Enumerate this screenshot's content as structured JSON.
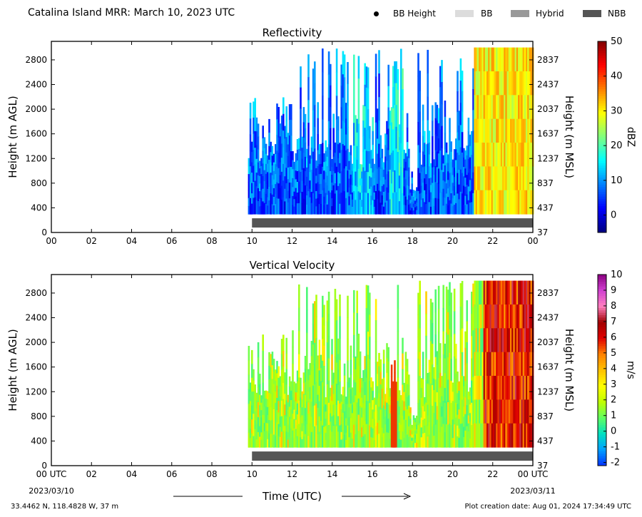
{
  "header": {
    "title": "Catalina Island MRR:  March 10, 2023 UTC",
    "legend": [
      {
        "key": "bb_height",
        "label": "BB Height",
        "symbol": "dot",
        "color": "#000000"
      },
      {
        "key": "bb",
        "label": "BB",
        "symbol": "rect",
        "color": "#dcdcdc"
      },
      {
        "key": "hybrid",
        "label": "Hybrid",
        "symbol": "rect",
        "color": "#999999"
      },
      {
        "key": "nbb",
        "label": "NBB",
        "symbol": "rect",
        "color": "#555555"
      }
    ]
  },
  "footer": {
    "location": "33.4462 N, 118.4828 W, 37 m",
    "creation": "Plot creation date: Aug 01, 2024 17:34:49 UTC"
  },
  "chart_data": [
    {
      "type": "heatmap",
      "title": "Reflectivity",
      "xlabel": "",
      "ylabel": "Height (m AGL)",
      "y2label": "Height (m MSL)",
      "xlim": [
        0,
        24
      ],
      "ylim": [
        0,
        3100
      ],
      "xticks": [
        "00",
        "02",
        "04",
        "06",
        "08",
        "10",
        "12",
        "14",
        "16",
        "18",
        "20",
        "22",
        "00"
      ],
      "yticks": [
        0,
        400,
        800,
        1200,
        1600,
        2000,
        2400,
        2800
      ],
      "y2ticks": [
        "37",
        "437",
        "837",
        "1237",
        "1637",
        "2037",
        "2437",
        "2837"
      ],
      "colorbar": {
        "label": "dBZ",
        "min": -5,
        "max": 50,
        "ticks": [
          0,
          10,
          20,
          30,
          40,
          50
        ],
        "colors": [
          "#00007f",
          "#0000ff",
          "#007fff",
          "#00ffff",
          "#7fff7f",
          "#ffff00",
          "#ff7f00",
          "#ff0000",
          "#7f0000"
        ]
      },
      "classification_band": {
        "class": "NBB",
        "start_hour": 10,
        "end_hour": 24
      },
      "data_start_hour": 9.8,
      "grid": false
    },
    {
      "type": "heatmap",
      "title": "Vertical Velocity",
      "xlabel": "Time (UTC)",
      "ylabel": "Height (m AGL)",
      "y2label": "Height (m MSL)",
      "xlim": [
        0,
        24
      ],
      "ylim": [
        0,
        3100
      ],
      "xticks": [
        "00 UTC",
        "02",
        "04",
        "06",
        "08",
        "10",
        "12",
        "14",
        "16",
        "18",
        "20",
        "22",
        "00 UTC"
      ],
      "xdate_start": "2023/03/10",
      "xdate_end": "2023/03/11",
      "yticks": [
        0,
        400,
        800,
        1200,
        1600,
        2000,
        2400,
        2800
      ],
      "y2ticks": [
        "37",
        "437",
        "837",
        "1237",
        "1637",
        "2037",
        "2437",
        "2837"
      ],
      "colorbar": {
        "label": "m/s",
        "min": -2.2,
        "max": 10,
        "ticks": [
          -2,
          -1,
          0,
          1,
          2,
          3,
          4,
          5,
          6,
          7,
          8,
          9,
          10
        ],
        "colors": [
          "#0033ff",
          "#00a0ff",
          "#00e0c0",
          "#60ff60",
          "#c0ff00",
          "#ffff00",
          "#ffc000",
          "#ff8000",
          "#e00000",
          "#a00000",
          "#ff80c0",
          "#d040d0",
          "#8a0080"
        ]
      },
      "classification_band": {
        "class": "NBB",
        "start_hour": 10,
        "end_hour": 24
      },
      "data_start_hour": 9.8,
      "grid": false
    }
  ]
}
